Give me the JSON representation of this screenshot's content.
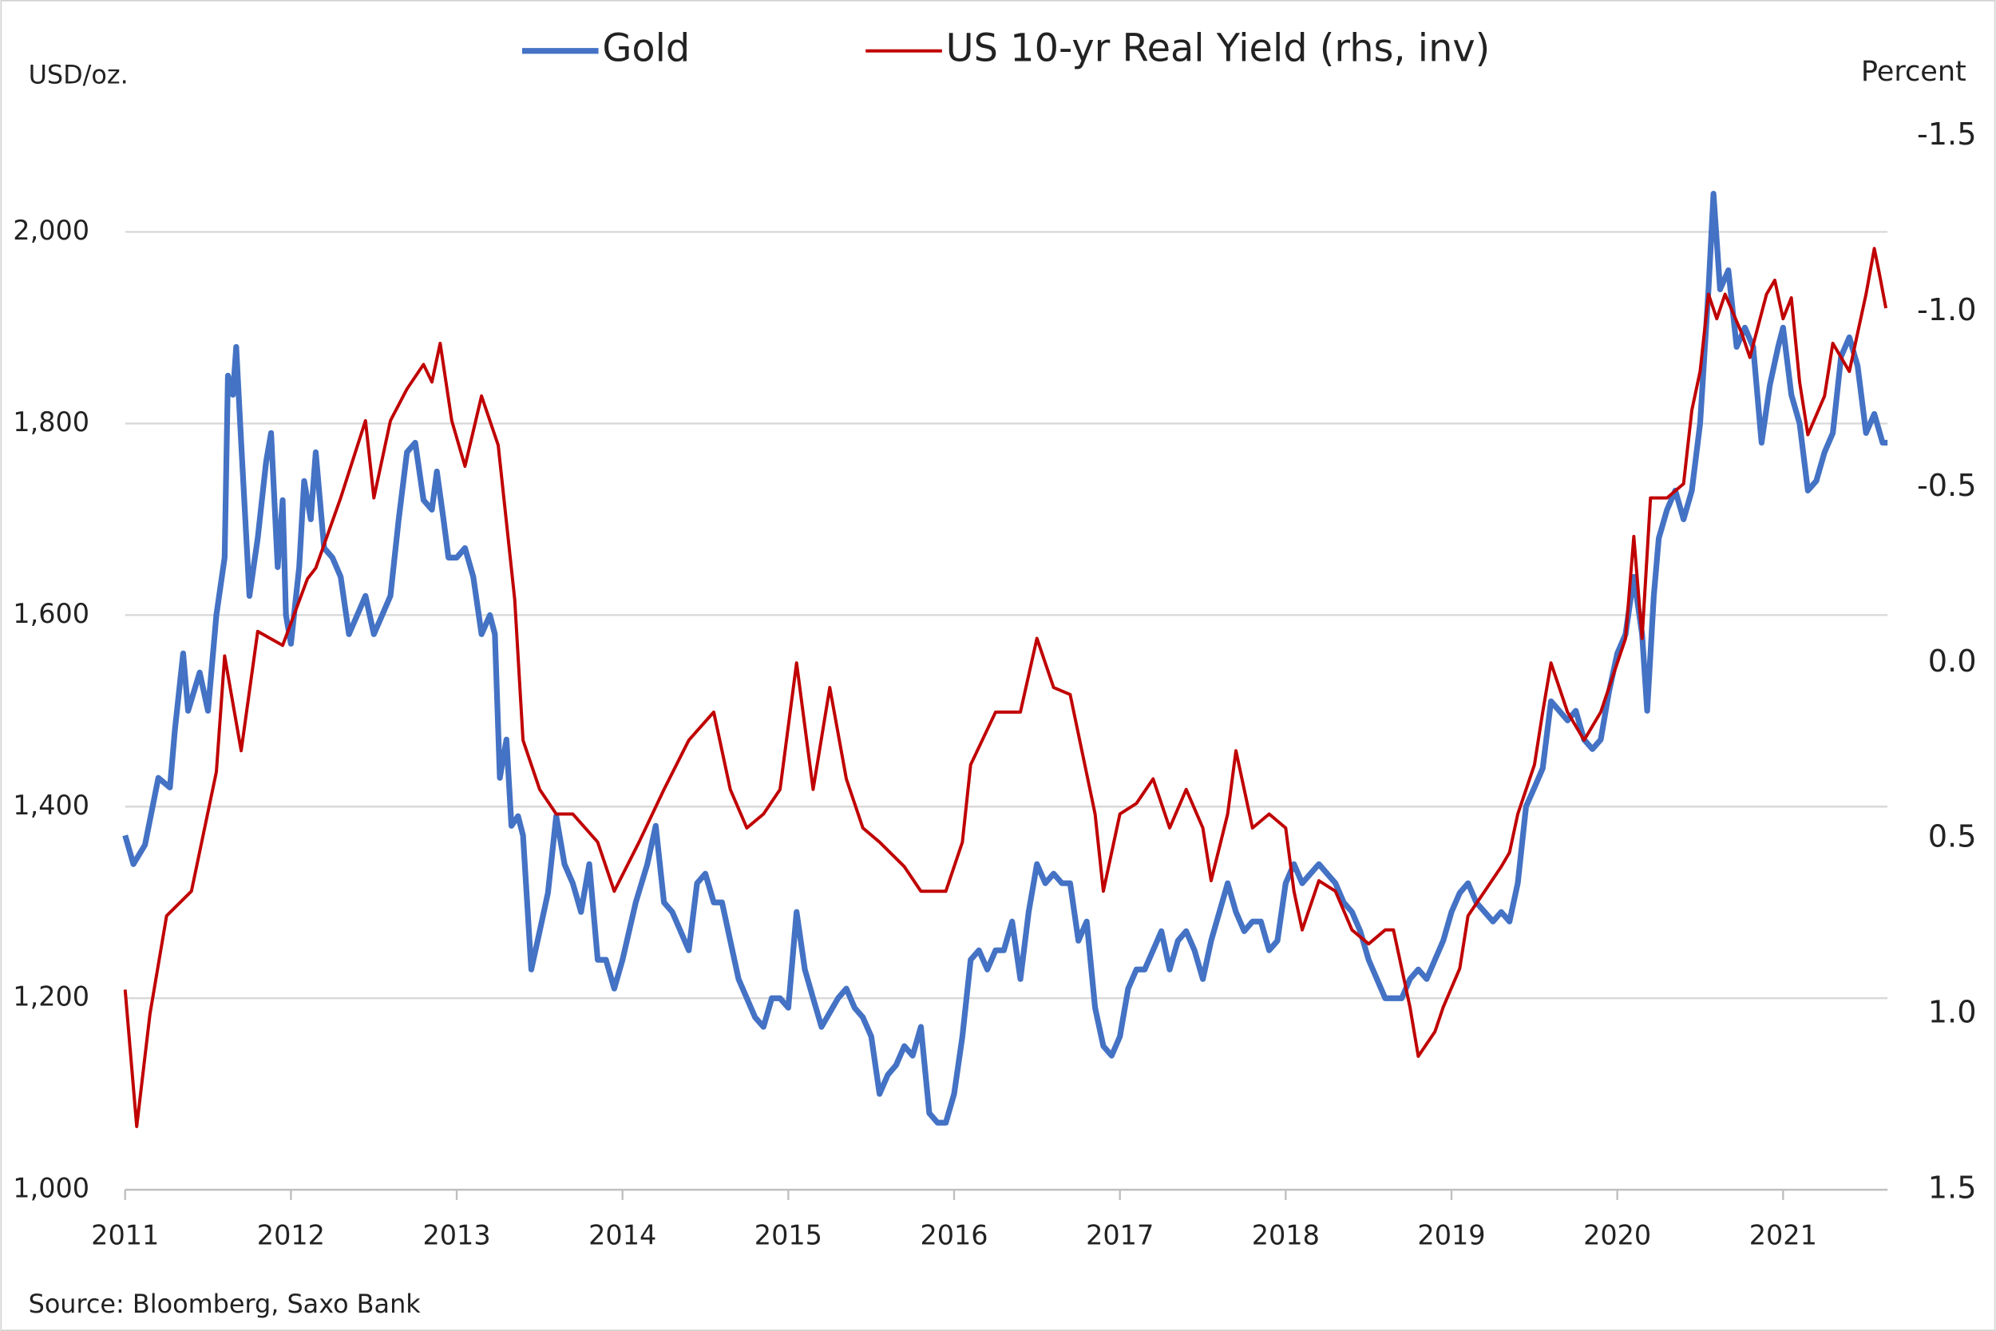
{
  "chart_data": {
    "type": "line",
    "legend": "top",
    "y_axis_label": "USD/oz.",
    "y2_axis_label": "Percent",
    "source": "Source: Bloomberg, Saxo Bank",
    "xlim": [
      2011,
      2021.63
    ],
    "xticks": [
      2011,
      2012,
      2013,
      2014,
      2015,
      2016,
      2017,
      2018,
      2019,
      2020,
      2021
    ],
    "ylim": [
      1000,
      2100
    ],
    "yticks": [
      {
        "value": 1000,
        "label": "1,000"
      },
      {
        "value": 1200,
        "label": "1,200"
      },
      {
        "value": 1400,
        "label": "1,400"
      },
      {
        "value": 1600,
        "label": "1,600"
      },
      {
        "value": 1800,
        "label": "1,800"
      },
      {
        "value": 2000,
        "label": "2,000"
      }
    ],
    "y2lim": [
      -1.5,
      1.5
    ],
    "y2_inverted": true,
    "y2ticks": [
      -1.5,
      {
        "value": -1,
        "label": "-1.0"
      },
      -0.5,
      {
        "value": 0,
        "label": "0.0"
      },
      0.5,
      {
        "value": 1,
        "label": "1.0"
      },
      1.5
    ],
    "grid": true,
    "series": [
      {
        "name": "Gold",
        "color": "#4472c4",
        "axis": "y",
        "x": [
          2011.0,
          2011.05,
          2011.12,
          2011.2,
          2011.27,
          2011.3,
          2011.35,
          2011.38,
          2011.45,
          2011.5,
          2011.55,
          2011.6,
          2011.62,
          2011.65,
          2011.67,
          2011.7,
          2011.75,
          2011.8,
          2011.85,
          2011.88,
          2011.92,
          2011.95,
          2011.97,
          2012.0,
          2012.05,
          2012.08,
          2012.12,
          2012.15,
          2012.2,
          2012.25,
          2012.3,
          2012.35,
          2012.4,
          2012.45,
          2012.5,
          2012.55,
          2012.6,
          2012.65,
          2012.7,
          2012.75,
          2012.8,
          2012.85,
          2012.88,
          2012.92,
          2012.95,
          2013.0,
          2013.05,
          2013.1,
          2013.15,
          2013.2,
          2013.23,
          2013.26,
          2013.3,
          2013.33,
          2013.37,
          2013.4,
          2013.45,
          2013.5,
          2013.55,
          2013.6,
          2013.65,
          2013.7,
          2013.75,
          2013.8,
          2013.85,
          2013.9,
          2013.95,
          2014.0,
          2014.08,
          2014.15,
          2014.2,
          2014.25,
          2014.3,
          2014.4,
          2014.45,
          2014.5,
          2014.55,
          2014.6,
          2014.7,
          2014.8,
          2014.85,
          2014.9,
          2014.95,
          2015.0,
          2015.05,
          2015.1,
          2015.15,
          2015.2,
          2015.3,
          2015.35,
          2015.4,
          2015.45,
          2015.5,
          2015.55,
          2015.6,
          2015.65,
          2015.7,
          2015.75,
          2015.8,
          2015.85,
          2015.9,
          2015.95,
          2016.0,
          2016.05,
          2016.1,
          2016.15,
          2016.2,
          2016.25,
          2016.3,
          2016.35,
          2016.4,
          2016.45,
          2016.5,
          2016.55,
          2016.6,
          2016.65,
          2016.7,
          2016.75,
          2016.8,
          2016.85,
          2016.9,
          2016.95,
          2017.0,
          2017.05,
          2017.1,
          2017.15,
          2017.2,
          2017.25,
          2017.3,
          2017.35,
          2017.4,
          2017.45,
          2017.5,
          2017.55,
          2017.6,
          2017.65,
          2017.7,
          2017.75,
          2017.8,
          2017.85,
          2017.9,
          2017.95,
          2018.0,
          2018.05,
          2018.1,
          2018.15,
          2018.2,
          2018.25,
          2018.3,
          2018.35,
          2018.4,
          2018.45,
          2018.5,
          2018.55,
          2018.6,
          2018.65,
          2018.7,
          2018.75,
          2018.8,
          2018.85,
          2018.9,
          2018.95,
          2019.0,
          2019.05,
          2019.1,
          2019.15,
          2019.2,
          2019.25,
          2019.3,
          2019.35,
          2019.4,
          2019.45,
          2019.5,
          2019.55,
          2019.6,
          2019.65,
          2019.7,
          2019.75,
          2019.8,
          2019.85,
          2019.9,
          2019.95,
          2020.0,
          2020.05,
          2020.1,
          2020.15,
          2020.18,
          2020.22,
          2020.25,
          2020.3,
          2020.35,
          2020.4,
          2020.45,
          2020.5,
          2020.55,
          2020.58,
          2020.62,
          2020.67,
          2020.72,
          2020.77,
          2020.82,
          2020.87,
          2020.92,
          2020.97,
          2021.0,
          2021.05,
          2021.1,
          2021.15,
          2021.2,
          2021.25,
          2021.3,
          2021.35,
          2021.4,
          2021.45,
          2021.5,
          2021.55,
          2021.6,
          2021.63
        ],
        "values": [
          1370,
          1340,
          1360,
          1430,
          1420,
          1480,
          1560,
          1500,
          1540,
          1500,
          1600,
          1660,
          1850,
          1830,
          1880,
          1780,
          1620,
          1680,
          1760,
          1790,
          1650,
          1720,
          1600,
          1570,
          1650,
          1740,
          1700,
          1770,
          1670,
          1660,
          1640,
          1580,
          1600,
          1620,
          1580,
          1600,
          1620,
          1700,
          1770,
          1780,
          1720,
          1710,
          1750,
          1700,
          1660,
          1660,
          1670,
          1640,
          1580,
          1600,
          1580,
          1430,
          1470,
          1380,
          1390,
          1370,
          1230,
          1270,
          1310,
          1390,
          1340,
          1320,
          1290,
          1340,
          1240,
          1240,
          1210,
          1240,
          1300,
          1340,
          1380,
          1300,
          1290,
          1250,
          1320,
          1330,
          1300,
          1300,
          1220,
          1180,
          1170,
          1200,
          1200,
          1190,
          1290,
          1230,
          1200,
          1170,
          1200,
          1210,
          1190,
          1180,
          1160,
          1100,
          1120,
          1130,
          1150,
          1140,
          1170,
          1080,
          1070,
          1070,
          1100,
          1160,
          1240,
          1250,
          1230,
          1250,
          1250,
          1280,
          1220,
          1290,
          1340,
          1320,
          1330,
          1320,
          1320,
          1260,
          1280,
          1190,
          1150,
          1140,
          1160,
          1210,
          1230,
          1230,
          1250,
          1270,
          1230,
          1260,
          1270,
          1250,
          1220,
          1260,
          1290,
          1320,
          1290,
          1270,
          1280,
          1280,
          1250,
          1260,
          1320,
          1340,
          1320,
          1330,
          1340,
          1330,
          1320,
          1300,
          1290,
          1270,
          1240,
          1220,
          1200,
          1200,
          1200,
          1220,
          1230,
          1220,
          1240,
          1260,
          1290,
          1310,
          1320,
          1300,
          1290,
          1280,
          1290,
          1280,
          1320,
          1400,
          1420,
          1440,
          1510,
          1500,
          1490,
          1500,
          1470,
          1460,
          1470,
          1520,
          1560,
          1580,
          1640,
          1580,
          1500,
          1620,
          1680,
          1710,
          1730,
          1700,
          1730,
          1800,
          1940,
          2040,
          1940,
          1960,
          1880,
          1900,
          1880,
          1780,
          1840,
          1880,
          1900,
          1830,
          1800,
          1730,
          1740,
          1770,
          1790,
          1870,
          1890,
          1860,
          1790,
          1810,
          1780,
          1780
        ]
      },
      {
        "name": "US 10-yr Real Yield (rhs, inv)",
        "color": "#c00000",
        "axis": "y2",
        "x": [
          2011.0,
          2011.07,
          2011.15,
          2011.25,
          2011.4,
          2011.55,
          2011.6,
          2011.7,
          2011.8,
          2011.95,
          2012.1,
          2012.15,
          2012.3,
          2012.45,
          2012.5,
          2012.6,
          2012.7,
          2012.8,
          2012.85,
          2012.9,
          2012.97,
          2013.05,
          2013.15,
          2013.25,
          2013.35,
          2013.4,
          2013.5,
          2013.6,
          2013.7,
          2013.85,
          2013.95,
          2014.1,
          2014.25,
          2014.4,
          2014.55,
          2014.65,
          2014.75,
          2014.85,
          2014.95,
          2015.05,
          2015.15,
          2015.25,
          2015.35,
          2015.45,
          2015.55,
          2015.7,
          2015.8,
          2015.95,
          2016.05,
          2016.1,
          2016.25,
          2016.4,
          2016.5,
          2016.6,
          2016.7,
          2016.85,
          2016.9,
          2017.0,
          2017.1,
          2017.2,
          2017.3,
          2017.4,
          2017.5,
          2017.55,
          2017.65,
          2017.7,
          2017.8,
          2017.9,
          2018.0,
          2018.05,
          2018.1,
          2018.2,
          2018.3,
          2018.4,
          2018.5,
          2018.6,
          2018.65,
          2018.75,
          2018.8,
          2018.9,
          2018.95,
          2019.05,
          2019.1,
          2019.2,
          2019.3,
          2019.35,
          2019.4,
          2019.5,
          2019.55,
          2019.6,
          2019.7,
          2019.8,
          2019.9,
          2020.0,
          2020.05,
          2020.1,
          2020.15,
          2020.2,
          2020.3,
          2020.4,
          2020.45,
          2020.5,
          2020.55,
          2020.6,
          2020.65,
          2020.75,
          2020.8,
          2020.9,
          2020.95,
          2021.0,
          2021.05,
          2021.1,
          2021.15,
          2021.25,
          2021.3,
          2021.4,
          2021.45,
          2021.5,
          2021.55,
          2021.58,
          2021.62
        ],
        "values": [
          0.93,
          1.32,
          1.0,
          0.72,
          0.65,
          0.31,
          -0.02,
          0.25,
          -0.09,
          -0.05,
          -0.24,
          -0.27,
          -0.47,
          -0.69,
          -0.47,
          -0.69,
          -0.78,
          -0.85,
          -0.8,
          -0.91,
          -0.69,
          -0.56,
          -0.76,
          -0.62,
          -0.18,
          0.22,
          0.36,
          0.43,
          0.43,
          0.51,
          0.65,
          0.51,
          0.36,
          0.22,
          0.14,
          0.36,
          0.47,
          0.43,
          0.36,
          0.0,
          0.36,
          0.07,
          0.33,
          0.47,
          0.51,
          0.58,
          0.65,
          0.65,
          0.51,
          0.29,
          0.14,
          0.14,
          -0.07,
          0.07,
          0.09,
          0.43,
          0.65,
          0.43,
          0.4,
          0.33,
          0.47,
          0.36,
          0.47,
          0.62,
          0.43,
          0.25,
          0.47,
          0.43,
          0.47,
          0.65,
          0.76,
          0.62,
          0.65,
          0.76,
          0.8,
          0.76,
          0.76,
          0.98,
          1.12,
          1.05,
          0.98,
          0.87,
          0.72,
          0.65,
          0.58,
          0.54,
          0.43,
          0.29,
          0.14,
          0.0,
          0.14,
          0.22,
          0.14,
          0.0,
          -0.07,
          -0.36,
          -0.07,
          -0.47,
          -0.47,
          -0.51,
          -0.72,
          -0.83,
          -1.05,
          -0.98,
          -1.05,
          -0.94,
          -0.87,
          -1.05,
          -1.09,
          -0.98,
          -1.04,
          -0.8,
          -0.65,
          -0.76,
          -0.91,
          -0.83,
          -0.94,
          -1.05,
          -1.18,
          -1.11,
          -1.01
        ]
      }
    ]
  }
}
